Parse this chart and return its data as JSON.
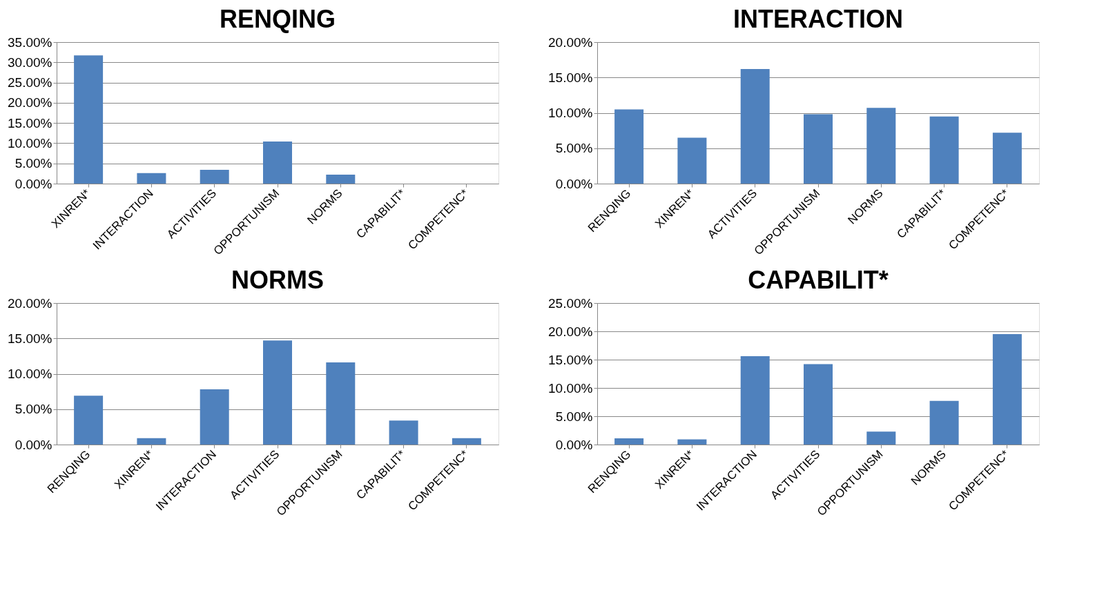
{
  "chart_data": [
    {
      "type": "bar",
      "title": "RENQING",
      "categories": [
        "XINREN*",
        "INTERACTION",
        "ACTIVITIES",
        "OPPORTUNISM",
        "NORMS",
        "CAPABILIT*",
        "COMPETENC*"
      ],
      "values": [
        31.7,
        2.6,
        3.4,
        10.4,
        2.2,
        0,
        0
      ],
      "color": "#4f81bd",
      "ylim": [
        0,
        35
      ],
      "yticks": [
        {
          "value": 0,
          "label": "0.00%"
        },
        {
          "value": 5,
          "label": "5.00%"
        },
        {
          "value": 10,
          "label": "10.00%"
        },
        {
          "value": 15,
          "label": "15.00%"
        },
        {
          "value": 20,
          "label": "20.00%"
        },
        {
          "value": 25,
          "label": "25.00%"
        },
        {
          "value": 30,
          "label": "30.00%"
        },
        {
          "value": 35,
          "label": "35.00%"
        }
      ],
      "grid": "y"
    },
    {
      "type": "bar",
      "title": "INTERACTION",
      "categories": [
        "RENQING",
        "XINREN*",
        "ACTIVITIES",
        "OPPORTUNISM",
        "NORMS",
        "CAPABILIT*",
        "COMPETENC*"
      ],
      "values": [
        10.5,
        6.5,
        16.2,
        9.8,
        10.7,
        9.5,
        7.2
      ],
      "color": "#4f81bd",
      "ylim": [
        0,
        20
      ],
      "yticks": [
        {
          "value": 0,
          "label": "0.00%"
        },
        {
          "value": 5,
          "label": "5.00%"
        },
        {
          "value": 10,
          "label": "10.00%"
        },
        {
          "value": 15,
          "label": "15.00%"
        },
        {
          "value": 20,
          "label": "20.00%"
        }
      ],
      "grid": "y"
    },
    {
      "type": "bar",
      "title": "NORMS",
      "categories": [
        "RENQING",
        "XINREN*",
        "INTERACTION",
        "ACTIVITIES",
        "OPPORTUNISM",
        "CAPABILIT*",
        "COMPETENC*"
      ],
      "values": [
        6.9,
        0.9,
        7.8,
        14.7,
        11.6,
        3.4,
        0.9
      ],
      "color": "#4f81bd",
      "ylim": [
        0,
        20
      ],
      "yticks": [
        {
          "value": 0,
          "label": "0.00%"
        },
        {
          "value": 5,
          "label": "5.00%"
        },
        {
          "value": 10,
          "label": "10.00%"
        },
        {
          "value": 15,
          "label": "15.00%"
        },
        {
          "value": 20,
          "label": "20.00%"
        }
      ],
      "grid": "y"
    },
    {
      "type": "bar",
      "title": "CAPABILIT*",
      "categories": [
        "RENQING",
        "XINREN*",
        "INTERACTION",
        "ACTIVITIES",
        "OPPORTUNISM",
        "NORMS",
        "COMPETENC*"
      ],
      "values": [
        1.1,
        0.9,
        15.6,
        14.2,
        2.3,
        7.7,
        19.5
      ],
      "color": "#4f81bd",
      "ylim": [
        0,
        25
      ],
      "yticks": [
        {
          "value": 0,
          "label": "0.00%"
        },
        {
          "value": 5,
          "label": "5.00%"
        },
        {
          "value": 10,
          "label": "10.00%"
        },
        {
          "value": 15,
          "label": "15.00%"
        },
        {
          "value": 20,
          "label": "20.00%"
        },
        {
          "value": 25,
          "label": "25.00%"
        }
      ],
      "grid": "y"
    }
  ]
}
